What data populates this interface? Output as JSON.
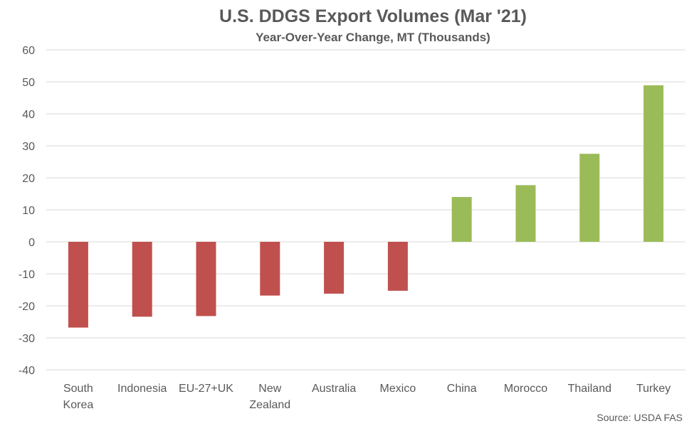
{
  "chart_data": {
    "type": "bar",
    "title": "U.S. DDGS Export Volumes (Mar '21)",
    "subtitle": "Year-Over-Year Change, MT (Thousands)",
    "source": "Source: USDA FAS",
    "categories": [
      [
        "South",
        "Korea"
      ],
      [
        "Indonesia"
      ],
      [
        "EU-27+UK"
      ],
      [
        "New",
        "Zealand"
      ],
      [
        "Australia"
      ],
      [
        "Mexico"
      ],
      [
        "China"
      ],
      [
        "Morocco"
      ],
      [
        "Thailand"
      ],
      [
        "Turkey"
      ]
    ],
    "values": [
      -26.8,
      -23.4,
      -23.2,
      -16.8,
      -16.2,
      -15.3,
      14.0,
      17.7,
      27.5,
      48.9
    ],
    "ylim": [
      -40,
      60
    ],
    "yticks": [
      60,
      50,
      40,
      30,
      20,
      10,
      0,
      -10,
      -20,
      -30,
      -40
    ],
    "grid": true,
    "legend": "none",
    "colors": {
      "negative": "#c0504d",
      "positive": "#9bbb59"
    }
  }
}
